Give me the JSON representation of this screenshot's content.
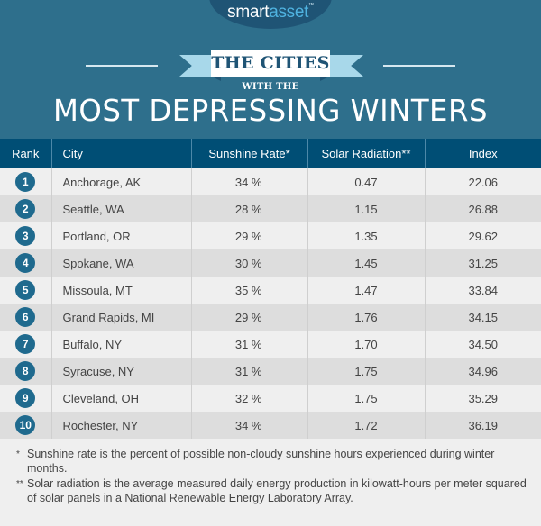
{
  "brand": {
    "logo_part1": "smart",
    "logo_part2": "asset",
    "trademark": "™"
  },
  "title": {
    "ribbon": "THE CITIES",
    "with_the": "WITH THE",
    "main": "MOST DEPRESSING WINTERS"
  },
  "colors": {
    "header_bg": "#2e6f8c",
    "table_header_bg": "#004e75",
    "badge": "#1f6a8e",
    "ribbon_light": "#a8d8ea",
    "row_odd": "#efefef",
    "row_even": "#dddddd"
  },
  "table": {
    "headers": {
      "rank": "Rank",
      "city": "City",
      "sunshine": "Sunshine Rate*",
      "solar": "Solar Radiation**",
      "index": "Index"
    },
    "rows": [
      {
        "rank": "1",
        "city": "Anchorage, AK",
        "sunshine": "34 %",
        "solar": "0.47",
        "index": "22.06"
      },
      {
        "rank": "2",
        "city": "Seattle, WA",
        "sunshine": "28 %",
        "solar": "1.15",
        "index": "26.88"
      },
      {
        "rank": "3",
        "city": "Portland, OR",
        "sunshine": "29 %",
        "solar": "1.35",
        "index": "29.62"
      },
      {
        "rank": "4",
        "city": "Spokane, WA",
        "sunshine": "30 %",
        "solar": "1.45",
        "index": "31.25"
      },
      {
        "rank": "5",
        "city": "Missoula, MT",
        "sunshine": "35 %",
        "solar": "1.47",
        "index": "33.84"
      },
      {
        "rank": "6",
        "city": "Grand Rapids, MI",
        "sunshine": "29 %",
        "solar": "1.76",
        "index": "34.15"
      },
      {
        "rank": "7",
        "city": "Buffalo, NY",
        "sunshine": "31 %",
        "solar": "1.70",
        "index": "34.50"
      },
      {
        "rank": "8",
        "city": "Syracuse, NY",
        "sunshine": "31 %",
        "solar": "1.75",
        "index": "34.96"
      },
      {
        "rank": "9",
        "city": "Cleveland, OH",
        "sunshine": "32 %",
        "solar": "1.75",
        "index": "35.29"
      },
      {
        "rank": "10",
        "city": "Rochester, NY",
        "sunshine": "34 %",
        "solar": "1.72",
        "index": "36.19"
      }
    ]
  },
  "footnotes": [
    {
      "mark": "*",
      "text": "Sunshine rate is the percent of possible non-cloudy sunshine hours experienced during winter months."
    },
    {
      "mark": "**",
      "text": "Solar radiation is the average measured daily energy production in kilowatt-hours per meter squared of solar panels in a National Renewable Energy Laboratory Array."
    }
  ]
}
